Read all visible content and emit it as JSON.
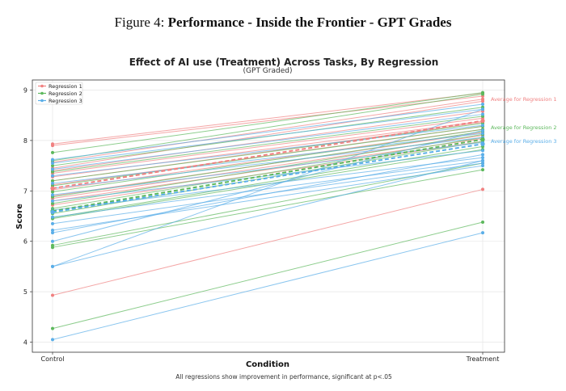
{
  "figure": {
    "prefix": "Figure 4:",
    "title": "Performance - Inside the Frontier - GPT Grades"
  },
  "footnote": "All regressions show improvement in performance, significant at p<.05",
  "chart_data": {
    "type": "line",
    "title": "Effect of AI use (Treatment) Across Tasks, By Regression",
    "subtitle": "(GPT Graded)",
    "xlabel": "Condition",
    "ylabel": "Score",
    "categories": [
      "Control",
      "Treatment"
    ],
    "ylim": [
      3.8,
      9.2
    ],
    "yticks": [
      4,
      5,
      6,
      7,
      8,
      9
    ],
    "grid": true,
    "legend_position": "top-left",
    "series": [
      {
        "name": "Regression 1",
        "color": "#f08080",
        "lines": [
          [
            7.93,
            8.94
          ],
          [
            7.9,
            8.88
          ],
          [
            7.57,
            8.82
          ],
          [
            7.45,
            8.78
          ],
          [
            7.4,
            8.58
          ],
          [
            7.35,
            8.44
          ],
          [
            7.28,
            8.38
          ],
          [
            7.2,
            8.36
          ],
          [
            7.12,
            8.28
          ],
          [
            7.02,
            8.22
          ],
          [
            6.9,
            8.16
          ],
          [
            6.85,
            8.1
          ],
          [
            6.8,
            8.04
          ],
          [
            6.72,
            7.98
          ],
          [
            4.93,
            7.03
          ]
        ],
        "average": [
          7.05,
          8.39
        ],
        "average_label": "Average for Regression 1"
      },
      {
        "name": "Regression 2",
        "color": "#5cb85c",
        "lines": [
          [
            7.76,
            8.95
          ],
          [
            7.6,
            8.92
          ],
          [
            7.5,
            8.66
          ],
          [
            7.38,
            8.48
          ],
          [
            7.2,
            8.34
          ],
          [
            7.1,
            8.28
          ],
          [
            6.98,
            8.22
          ],
          [
            6.88,
            8.18
          ],
          [
            6.75,
            8.12
          ],
          [
            6.65,
            8.06
          ],
          [
            6.55,
            7.98
          ],
          [
            6.47,
            7.88
          ],
          [
            6.45,
            7.82
          ],
          [
            5.92,
            7.55
          ],
          [
            5.88,
            7.42
          ],
          [
            4.27,
            6.38
          ]
        ],
        "average": [
          6.6,
          8.02
        ],
        "average_label": "Average for Regression 2"
      },
      {
        "name": "Regression 3",
        "color": "#5aaee8",
        "lines": [
          [
            7.62,
            8.72
          ],
          [
            7.55,
            8.62
          ],
          [
            7.43,
            8.52
          ],
          [
            7.3,
            8.3
          ],
          [
            7.15,
            8.14
          ],
          [
            7.05,
            8.06
          ],
          [
            6.92,
            7.96
          ],
          [
            6.8,
            7.8
          ],
          [
            6.62,
            7.66
          ],
          [
            6.48,
            7.6
          ],
          [
            6.35,
            7.55
          ],
          [
            6.22,
            7.5
          ],
          [
            6.17,
            7.72
          ],
          [
            6.0,
            8.2
          ],
          [
            5.5,
            7.6
          ],
          [
            5.5,
            8.62
          ],
          [
            4.05,
            6.17
          ]
        ],
        "average": [
          6.58,
          7.93
        ],
        "average_label": "Average for Regression 3"
      }
    ]
  }
}
